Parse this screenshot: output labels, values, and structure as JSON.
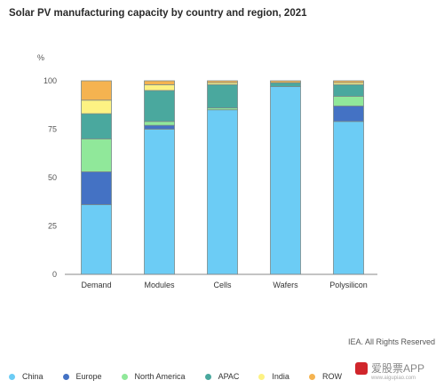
{
  "title": "Solar PV manufacturing capacity by country and region, 2021",
  "credit": "IEA. All Rights Reserved",
  "watermark": {
    "text": "爱股票APP",
    "url": "www.aigupiao.com"
  },
  "colors": {
    "China": "#6cccf5",
    "Europe": "#4472c4",
    "North America": "#90e89a",
    "APAC": "#4aa89e",
    "India": "#fdf283",
    "ROW": "#f5b350",
    "axis": "#888888",
    "grid": "#e6e6e6"
  },
  "chart_data": {
    "type": "bar",
    "stacked": true,
    "title": "Solar PV manufacturing capacity by country and region, 2021",
    "ylabel": "%",
    "xlabel": "",
    "ylim": [
      0,
      100
    ],
    "yticks": [
      0,
      25,
      50,
      75,
      100
    ],
    "grid": false,
    "legend_position": "bottom",
    "categories": [
      "Demand",
      "Modules",
      "Cells",
      "Wafers",
      "Polysilicon"
    ],
    "series": [
      {
        "name": "China",
        "values": [
          36,
          75,
          85,
          97,
          79
        ]
      },
      {
        "name": "Europe",
        "values": [
          17,
          2,
          0,
          0,
          8
        ]
      },
      {
        "name": "North America",
        "values": [
          17,
          2,
          1,
          0,
          5
        ]
      },
      {
        "name": "APAC",
        "values": [
          13,
          16,
          12,
          2,
          6
        ]
      },
      {
        "name": "India",
        "values": [
          7,
          3,
          1,
          0,
          1
        ]
      },
      {
        "name": "ROW",
        "values": [
          10,
          2,
          1,
          1,
          1
        ]
      }
    ]
  }
}
